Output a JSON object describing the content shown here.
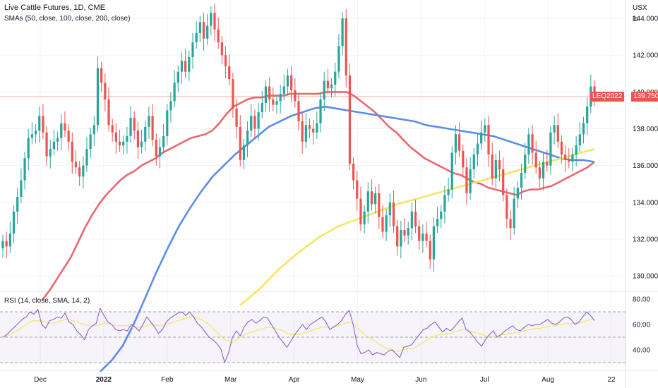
{
  "chart_data": [
    {
      "type": "candlestick",
      "title": "Live Cattle Futures, 1D, CME",
      "indicator_label": "SMAs (50, close, 100, close, 200, close)",
      "currency": "USX",
      "unit": "lb",
      "y_ticks": [
        "144.000",
        "142.000",
        "140.000",
        "138.000",
        "136.000",
        "134.000",
        "132.000",
        "130.000"
      ],
      "ylim": [
        129.2,
        145.0
      ],
      "x_ticks": [
        "Dec",
        "2022",
        "Feb",
        "Mar",
        "Apr",
        "May",
        "Jun",
        "Jul",
        "Aug",
        "22"
      ],
      "symbol_tag": "LEQ2022",
      "last_price": "139.750",
      "last_value": 139.75,
      "colors": {
        "up": "#26a69a",
        "down": "#ef5350",
        "sma50": "#e9686f",
        "sma100": "#5b8de8",
        "sma200": "#f4e664"
      },
      "candles_close": [
        131.9,
        131.6,
        132.3,
        133.5,
        134.3,
        135.2,
        136.4,
        137.5,
        137.7,
        137.9,
        138.7,
        137.8,
        136.5,
        136.9,
        137.3,
        137.5,
        138.3,
        137.9,
        137.3,
        136.2,
        135.9,
        135.4,
        136.0,
        136.9,
        137.7,
        138.2,
        141.3,
        140.5,
        139.6,
        138.2,
        137.8,
        137.3,
        137.1,
        137.3,
        137.6,
        138.6,
        137.9,
        137.0,
        137.3,
        138.1,
        138.7,
        137.4,
        136.5,
        137.0,
        137.6,
        139.0,
        139.5,
        140.5,
        141.1,
        141.7,
        141.1,
        141.9,
        142.7,
        143.2,
        143.8,
        142.9,
        143.6,
        144.3,
        143.4,
        142.7,
        142.0,
        141.4,
        140.7,
        139.1,
        138.1,
        136.3,
        137.1,
        137.9,
        138.7,
        138.0,
        138.9,
        139.4,
        140.3,
        139.6,
        139.3,
        139.5,
        139.9,
        140.3,
        140.9,
        140.1,
        139.5,
        138.4,
        137.3,
        138.2,
        138.0,
        137.8,
        138.3,
        139.6,
        140.6,
        140.2,
        140.4,
        141.1,
        142.5,
        144.0,
        140.9,
        136.1,
        135.2,
        134.2,
        132.8,
        133.5,
        134.6,
        133.9,
        134.5,
        133.2,
        132.4,
        133.3,
        134.0,
        132.7,
        131.6,
        132.5,
        132.2,
        132.6,
        133.5,
        132.7,
        131.9,
        132.3,
        131.9,
        130.9,
        132.7,
        133.1,
        133.5,
        134.4,
        134.7,
        136.7,
        137.7,
        136.8,
        135.9,
        134.5,
        135.8,
        136.6,
        137.2,
        137.8,
        138.2,
        136.6,
        135.3,
        136.3,
        135.8,
        134.4,
        133.1,
        132.6,
        134.2,
        134.8,
        135.6,
        136.6,
        137.7,
        136.7,
        135.9,
        135.3,
        136.2,
        136.0,
        137.8,
        138.2,
        137.3,
        136.6,
        136.3,
        136.2,
        136.6,
        137.1,
        137.7,
        138.3,
        139.2,
        140.3,
        139.75
      ],
      "sma50": [
        128.7,
        129.2,
        129.8,
        130.4,
        131.0,
        131.8,
        132.6,
        133.3,
        133.9,
        134.4,
        134.8,
        135.2,
        135.5,
        135.7,
        136.0,
        136.2,
        136.4,
        136.7,
        136.9,
        137.1,
        137.3,
        137.5,
        137.6,
        137.7,
        137.9,
        138.3,
        138.8,
        139.2,
        139.4,
        139.6,
        139.7,
        139.7,
        139.8,
        139.8,
        139.8,
        139.9,
        139.9,
        139.9,
        139.9,
        139.9,
        140.0,
        140.0,
        140.0,
        140.0,
        139.8,
        139.5,
        139.2,
        138.9,
        138.5,
        138.1,
        137.8,
        137.4,
        137.0,
        136.7,
        136.4,
        136.2,
        136.0,
        135.8,
        135.6,
        135.5,
        135.3,
        135.1,
        135.0,
        134.8,
        134.7,
        134.6,
        134.5,
        134.4,
        134.6,
        134.7,
        134.7,
        134.8,
        134.9,
        135.1,
        135.3,
        135.5,
        135.7,
        135.9,
        136.2
      ],
      "sma100": [
        124.8,
        125.4,
        126.2,
        127.4,
        128.8,
        130.2,
        131.5,
        132.7,
        133.7,
        134.6,
        135.4,
        136.0,
        136.6,
        137.1,
        137.6,
        138.1,
        138.4,
        138.7,
        138.9,
        139.1,
        139.2,
        139.1,
        139.0,
        138.9,
        138.8,
        138.7,
        138.6,
        138.5,
        138.4,
        138.2,
        138.1,
        138.0,
        137.9,
        137.8,
        137.7,
        137.6,
        137.4,
        137.2,
        137.0,
        136.8,
        136.6,
        136.4,
        136.3,
        136.3,
        136.2
      ],
      "sma200": [
        128.4,
        129.3,
        130.4,
        131.3,
        132.1,
        132.7,
        133.1,
        133.5,
        133.9,
        134.2,
        134.5,
        134.8,
        135.1,
        135.4,
        135.7,
        136.0,
        136.3,
        136.6,
        136.9
      ],
      "x_axis_label": "",
      "y_axis_label": "",
      "grid": true
    },
    {
      "type": "line",
      "title": "RSI (14, close, SMA, 14, 2)",
      "y_ticks": [
        "80.00",
        "60.00",
        "40.00"
      ],
      "ylim": [
        25,
        85
      ],
      "bands": [
        70,
        50,
        30
      ],
      "rsi": [
        50,
        52,
        55,
        58,
        61,
        64,
        66,
        70,
        68,
        72,
        60,
        57,
        63,
        64,
        66,
        65,
        69,
        62,
        60,
        55,
        52,
        48,
        56,
        59,
        61,
        73,
        67,
        62,
        60,
        56,
        55,
        56,
        55,
        60,
        58,
        55,
        60,
        66,
        62,
        58,
        53,
        56,
        62,
        65,
        67,
        69,
        70,
        67,
        70,
        66,
        61,
        58,
        54,
        50,
        48,
        45,
        41,
        30,
        38,
        50,
        55,
        51,
        58,
        62,
        64,
        61,
        63,
        66,
        65,
        60,
        55,
        50,
        46,
        42,
        47,
        52,
        56,
        60,
        56,
        60,
        62,
        64,
        66,
        62,
        56,
        58,
        60,
        63,
        68,
        71,
        60,
        44,
        37,
        38,
        40,
        36,
        38,
        37,
        36,
        39,
        40,
        37,
        34,
        42,
        43,
        44,
        48,
        52,
        56,
        57,
        60,
        62,
        58,
        54,
        57,
        55,
        58,
        62,
        65,
        56,
        54,
        50,
        46,
        43,
        48,
        52,
        55,
        50,
        52,
        55,
        57,
        59,
        56,
        55,
        58,
        60,
        59,
        60,
        60,
        62,
        64,
        61,
        60,
        62,
        65,
        66,
        64,
        60,
        62,
        66,
        70,
        67,
        63
      ],
      "rsi_sma": [
        50,
        51,
        52,
        54,
        56,
        58,
        60,
        62,
        63,
        63,
        63,
        62,
        61,
        61,
        62,
        63,
        64,
        64,
        63,
        62,
        61,
        60,
        59,
        59,
        59,
        60,
        61,
        61,
        60,
        59,
        59,
        59,
        59,
        58,
        58,
        58,
        58,
        59,
        60,
        60,
        59,
        59,
        60,
        61,
        62,
        63,
        64,
        65,
        66,
        66,
        65,
        64,
        62,
        60,
        57,
        54,
        51,
        48,
        47,
        46,
        48,
        50,
        52,
        53,
        54,
        55,
        56,
        57,
        58,
        58,
        57,
        56,
        55,
        53,
        52,
        52,
        52,
        53,
        54,
        55,
        56,
        57,
        58,
        58,
        58,
        58,
        59,
        60,
        61,
        62,
        61,
        58,
        55,
        52,
        50,
        48,
        46,
        44,
        42,
        41,
        40,
        39,
        39,
        40,
        41,
        41,
        42,
        44,
        46,
        48,
        50,
        51,
        52,
        52,
        53,
        53,
        54,
        55,
        56,
        56,
        55,
        54,
        53,
        52,
        51,
        51,
        51,
        51,
        52,
        52,
        53,
        53,
        54,
        54,
        55,
        56,
        56,
        57,
        57,
        58,
        58,
        59,
        59,
        60,
        60,
        61,
        61,
        61,
        61,
        62,
        63,
        64,
        64
      ]
    }
  ]
}
